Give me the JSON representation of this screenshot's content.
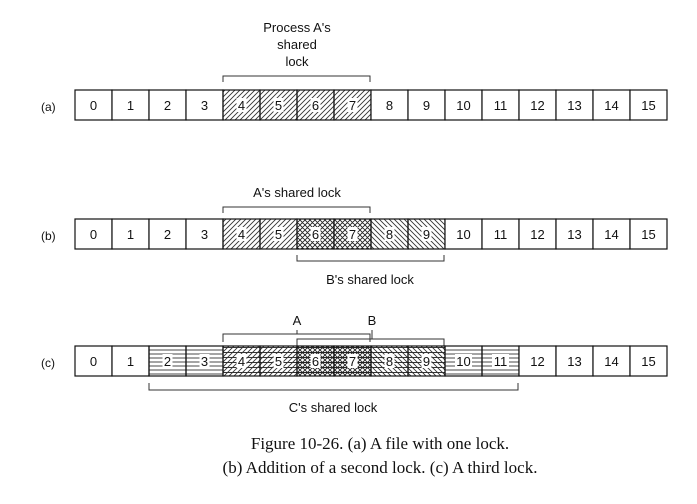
{
  "rows": [
    {
      "label": "(a)",
      "cells": [
        "0",
        "1",
        "2",
        "3",
        "4",
        "5",
        "6",
        "7",
        "8",
        "9",
        "10",
        "11",
        "12",
        "13",
        "14",
        "15"
      ],
      "fills": [
        "none",
        "none",
        "none",
        "none",
        "diag",
        "diag",
        "diag",
        "diag",
        "none",
        "none",
        "none",
        "none",
        "none",
        "none",
        "none",
        "none"
      ]
    },
    {
      "label": "(b)",
      "cells": [
        "0",
        "1",
        "2",
        "3",
        "4",
        "5",
        "6",
        "7",
        "8",
        "9",
        "10",
        "11",
        "12",
        "13",
        "14",
        "15"
      ],
      "fills": [
        "none",
        "none",
        "none",
        "none",
        "diag",
        "diag",
        "cross",
        "cross",
        "anti",
        "anti",
        "none",
        "none",
        "none",
        "none",
        "none",
        "none"
      ]
    },
    {
      "label": "(c)",
      "cells": [
        "0",
        "1",
        "2",
        "3",
        "4",
        "5",
        "6",
        "7",
        "8",
        "9",
        "10",
        "11",
        "12",
        "13",
        "14",
        "15"
      ],
      "fills": [
        "none",
        "none",
        "horiz",
        "horiz",
        "hdiag",
        "hdiag",
        "hcross",
        "hcross",
        "hanti",
        "hanti",
        "horiz",
        "horiz",
        "none",
        "none",
        "none",
        "none"
      ]
    }
  ],
  "labels": {
    "a_top": [
      "Process A's",
      "shared",
      "lock"
    ],
    "b_top": "A's shared lock",
    "b_bottom": "B's shared lock",
    "c_A": "A",
    "c_B": "B",
    "c_bottom": "C's shared lock"
  },
  "caption": {
    "line1": "Figure 10-26. (a) A file with one lock.",
    "line2": "(b) Addition of a second lock. (c) A third lock."
  }
}
